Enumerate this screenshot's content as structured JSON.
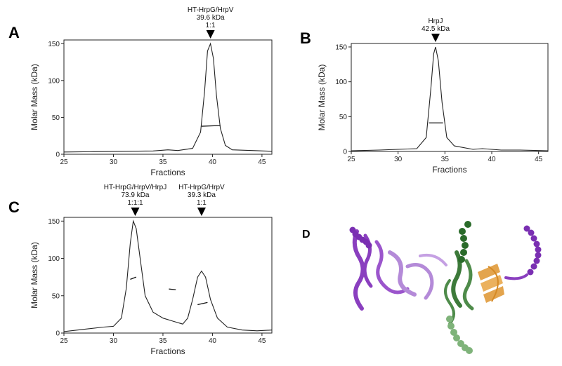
{
  "panels": {
    "A": {
      "letter": "A"
    },
    "B": {
      "letter": "B"
    },
    "C": {
      "letter": "C"
    },
    "D": {
      "letter": "D"
    }
  },
  "colors": {
    "trace": "#222222",
    "helix_purple": "#8a3fbf",
    "helix_lavender": "#b48ad8",
    "helix_green": "#3d7a3a",
    "helix_light_green": "#7fb37a",
    "helix_orange": "#e09a3a"
  },
  "chart_data": [
    {
      "panel": "A",
      "type": "line",
      "xlabel": "Fractions",
      "ylabel": "Molar Mass (kDa)",
      "xlim": [
        25,
        46
      ],
      "ylim": [
        0,
        155
      ],
      "xticks": [
        25,
        30,
        35,
        40,
        45
      ],
      "yticks": [
        0,
        50,
        100,
        150
      ],
      "series": [
        {
          "x": [
            25,
            28,
            31,
            34,
            35.5,
            36.5,
            38,
            38.8,
            39.2,
            39.5,
            39.8,
            40.1,
            40.4,
            40.8,
            41.3,
            42,
            44,
            46
          ],
          "y": [
            3,
            3.5,
            4,
            4.5,
            6,
            5,
            8,
            30,
            85,
            140,
            150,
            130,
            80,
            35,
            12,
            6,
            5,
            4
          ]
        }
      ],
      "mass_segments": [
        {
          "x": [
            38.9,
            40.8
          ],
          "y": [
            38,
            39
          ]
        }
      ],
      "annotations": [
        {
          "x": 39.8,
          "lines": [
            "HT-HrpG/HrpV",
            "39.6 kDa",
            "1:1"
          ]
        }
      ]
    },
    {
      "panel": "B",
      "type": "line",
      "xlabel": "Fractions",
      "ylabel": "Molar Mass (kDa)",
      "xlim": [
        25,
        46
      ],
      "ylim": [
        0,
        155
      ],
      "xticks": [
        25,
        30,
        35,
        40,
        45
      ],
      "yticks": [
        0,
        50,
        100,
        150
      ],
      "series": [
        {
          "x": [
            25,
            28,
            30,
            32,
            33,
            33.5,
            33.8,
            34,
            34.3,
            34.7,
            35.2,
            36,
            38,
            39,
            41,
            43,
            46
          ],
          "y": [
            1,
            2,
            3,
            4,
            20,
            90,
            140,
            150,
            130,
            70,
            20,
            8,
            3,
            4,
            2,
            2,
            1
          ]
        }
      ],
      "mass_segments": [
        {
          "x": [
            33.3,
            34.8
          ],
          "y": [
            41,
            41
          ]
        }
      ],
      "annotations": [
        {
          "x": 34,
          "lines": [
            "HrpJ",
            "42.5 kDa"
          ]
        }
      ]
    },
    {
      "panel": "C",
      "type": "line",
      "xlabel": "Fractions",
      "ylabel": "Molar Mass (kDa)",
      "xlim": [
        25,
        46
      ],
      "ylim": [
        0,
        155
      ],
      "xticks": [
        25,
        30,
        35,
        40,
        45
      ],
      "yticks": [
        0,
        50,
        100,
        150
      ],
      "series": [
        {
          "x": [
            25,
            27,
            29,
            30,
            30.8,
            31.3,
            31.7,
            32,
            32.3,
            32.7,
            33.2,
            34,
            35,
            36,
            37,
            37.5,
            38,
            38.5,
            38.9,
            39.3,
            39.8,
            40.5,
            41.5,
            43,
            44.5,
            46
          ],
          "y": [
            2,
            5,
            8,
            9,
            20,
            60,
            120,
            150,
            140,
            100,
            50,
            28,
            20,
            16,
            12,
            20,
            45,
            75,
            83,
            75,
            45,
            20,
            8,
            4,
            3,
            4
          ]
        }
      ],
      "mass_segments": [
        {
          "x": [
            31.7,
            32.3
          ],
          "y": [
            72,
            75
          ]
        },
        {
          "x": [
            35.6,
            36.3
          ],
          "y": [
            59,
            58
          ]
        },
        {
          "x": [
            38.5,
            39.5
          ],
          "y": [
            38,
            41
          ]
        }
      ],
      "annotations": [
        {
          "x": 32.2,
          "lines": [
            "HT-HrpG/HrpV/HrpJ",
            "73.9 kDa",
            "1:1:1"
          ]
        },
        {
          "x": 38.9,
          "lines": [
            "HT-HrpG/HrpV",
            "39.3 kDa",
            "1:1"
          ]
        }
      ]
    }
  ]
}
